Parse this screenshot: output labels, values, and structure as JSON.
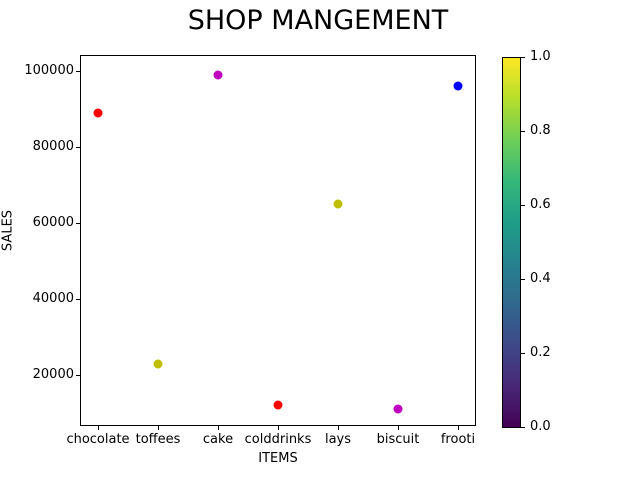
{
  "title": "SHOP MANGEMENT",
  "chart_data": {
    "type": "scatter",
    "title": "SHOP MANGEMENT",
    "xlabel": "ITEMS",
    "ylabel": "SALES",
    "categories": [
      "chocolate",
      "toffees",
      "cake",
      "colddrinks",
      "lays",
      "biscuit",
      "frooti"
    ],
    "values": [
      89000,
      23000,
      99000,
      12000,
      65000,
      11000,
      96000
    ],
    "point_colors": [
      "#ff0000",
      "#bfbf00",
      "#bf00bf",
      "#ff0000",
      "#bfbf00",
      "#bf00bf",
      "#0000ff"
    ],
    "yticks": [
      20000,
      40000,
      60000,
      80000,
      100000
    ],
    "ytick_labels": [
      "20000",
      "40000",
      "60000",
      "80000",
      "100000"
    ],
    "ylim": [
      6600,
      104200
    ],
    "xlim": [
      -0.3,
      6.3
    ],
    "grid": false,
    "legend": null,
    "colorbar": {
      "cmap": "viridis",
      "range": [
        0.0,
        1.0
      ],
      "ticks": [
        0.0,
        0.2,
        0.4,
        0.6,
        0.8,
        1.0
      ],
      "tick_labels": [
        "0.0",
        "0.2",
        "0.4",
        "0.6",
        "0.8",
        "1.0"
      ],
      "gradient_bottom_to_top": [
        "#440154",
        "#482878",
        "#3e4989",
        "#31688e",
        "#26828e",
        "#1f9e89",
        "#35b779",
        "#6ece58",
        "#b5de2b",
        "#fde725"
      ]
    }
  }
}
